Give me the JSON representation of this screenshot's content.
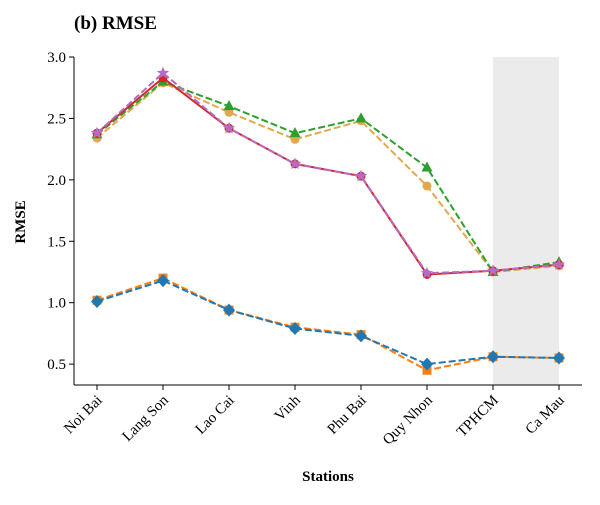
{
  "chart_data": {
    "type": "line",
    "title": "(b) RMSE",
    "xlabel": "Stations",
    "ylabel": "RMSE",
    "categories": [
      "Noi Bai",
      "Lang Son",
      "Lao Cai",
      "Vinh",
      "Phu Bai",
      "Quy Nhon",
      "TPHCM",
      "Ca Mau"
    ],
    "ylim": [
      0.33,
      3.0
    ],
    "yticks": [
      0.5,
      1.0,
      1.5,
      2.0,
      2.5,
      3.0
    ],
    "ytick_labels": [
      "0.5",
      "1.0",
      "1.5",
      "2.0",
      "2.5",
      "3.0"
    ],
    "grid": false,
    "legend": "none",
    "shaded_region": {
      "from_category": "TPHCM",
      "to_category": "Ca Mau",
      "color": "#e6e6e6"
    },
    "series": [
      {
        "values": [
          2.34,
          2.79,
          2.55,
          2.33,
          2.48,
          1.95,
          1.25,
          1.3
        ],
        "color": "#e2a84d",
        "marker": "circle",
        "linestyle": "dashed"
      },
      {
        "values": [
          2.37,
          2.8,
          2.6,
          2.38,
          2.5,
          2.1,
          1.25,
          1.33
        ],
        "color": "#2ca02c",
        "marker": "triangle",
        "linestyle": "dashed"
      },
      {
        "values": [
          2.38,
          2.83,
          2.42,
          2.13,
          2.03,
          1.23,
          1.26,
          1.31
        ],
        "color": "#d62728",
        "marker": "circle",
        "linestyle": "solid"
      },
      {
        "values": [
          2.38,
          2.87,
          2.42,
          2.13,
          2.03,
          1.24,
          1.26,
          1.31
        ],
        "color": "#b56cc4",
        "marker": "star",
        "linestyle": "dashed"
      },
      {
        "values": [
          1.02,
          1.2,
          0.94,
          0.8,
          0.74,
          0.45,
          0.56,
          0.55
        ],
        "color": "#ff7f0e",
        "marker": "square",
        "linestyle": "dashed"
      },
      {
        "values": [
          1.01,
          1.18,
          0.94,
          0.79,
          0.73,
          0.5,
          0.56,
          0.55
        ],
        "color": "#1f77b4",
        "marker": "diamond",
        "linestyle": "dashed"
      }
    ]
  }
}
